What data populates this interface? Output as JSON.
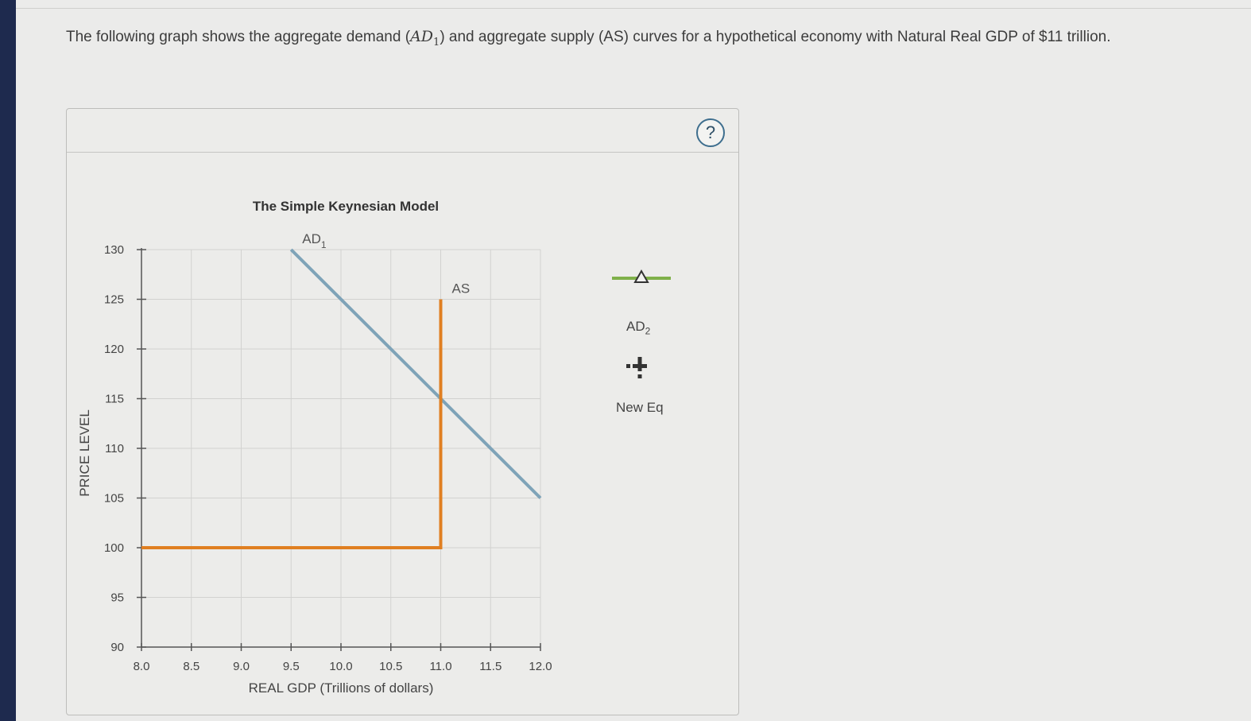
{
  "question": {
    "part1": "The following graph shows the aggregate demand (",
    "math_main": "AD",
    "math_sub": "1",
    "part2": ") and aggregate supply (AS) curves for a hypothetical economy with Natural Real GDP of $11 trillion."
  },
  "help": {
    "symbol": "?"
  },
  "legend": {
    "ad2_label": "AD",
    "ad2_sub": "2",
    "new_eq_label": "New Eq",
    "ad2_color": "#7fb04a",
    "new_eq_color": "#333333"
  },
  "chart_data": {
    "type": "line",
    "title": "The Simple Keynesian Model",
    "xlabel": "REAL GDP (Trillions of dollars)",
    "ylabel": "PRICE LEVEL",
    "xlim": [
      8.0,
      12.0
    ],
    "ylim": [
      90,
      130
    ],
    "xticks": [
      "8.0",
      "8.5",
      "9.0",
      "9.5",
      "10.0",
      "10.5",
      "11.0",
      "11.5",
      "12.0"
    ],
    "yticks": [
      "90",
      "95",
      "100",
      "105",
      "110",
      "115",
      "120",
      "125",
      "130"
    ],
    "grid": true,
    "series": [
      {
        "name": "AD",
        "name_sub": "1",
        "color": "#7ea3b8",
        "points": [
          [
            9.5,
            130
          ],
          [
            12.0,
            105
          ]
        ]
      },
      {
        "name": "AS",
        "color": "#e07f21",
        "points": [
          [
            8.0,
            100
          ],
          [
            11.0,
            100
          ],
          [
            11.0,
            125
          ]
        ]
      }
    ]
  }
}
